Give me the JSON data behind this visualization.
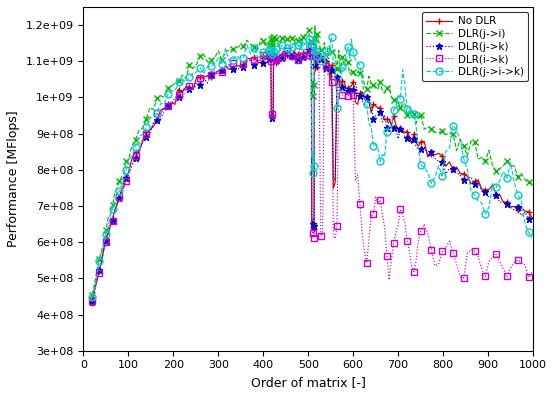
{
  "xlabel": "Order of matrix [-]",
  "ylabel": "Performance [MFlops]",
  "xlim": [
    0,
    1000
  ],
  "ylim": [
    300000000.0,
    1250000000.0
  ],
  "yticks": [
    300000000.0,
    400000000.0,
    500000000.0,
    600000000.0,
    700000000.0,
    800000000.0,
    900000000.0,
    1000000000.0,
    1100000000.0,
    1200000000.0
  ],
  "xticks": [
    0,
    100,
    200,
    300,
    400,
    500,
    600,
    700,
    800,
    900,
    1000
  ],
  "series": [
    {
      "label": "No DLR",
      "color": "#cc0000",
      "linestyle": "-",
      "marker": "+",
      "markersize": 5
    },
    {
      "label": "DLR(j->i)",
      "color": "#00bb00",
      "linestyle": "--",
      "marker": "x",
      "markersize": 5
    },
    {
      "label": "DLR(j->k)",
      "color": "#0000cc",
      "linestyle": ":",
      "marker": "*",
      "markersize": 5
    },
    {
      "label": "DLR(i->k)",
      "color": "#cc00cc",
      "linestyle": ":",
      "marker": "s",
      "markersize": 4
    },
    {
      "label": "DLR(j->i->k)",
      "color": "#00cccc",
      "linestyle": "--",
      "marker": "o",
      "markersize": 5
    }
  ],
  "background_color": "#ffffff"
}
